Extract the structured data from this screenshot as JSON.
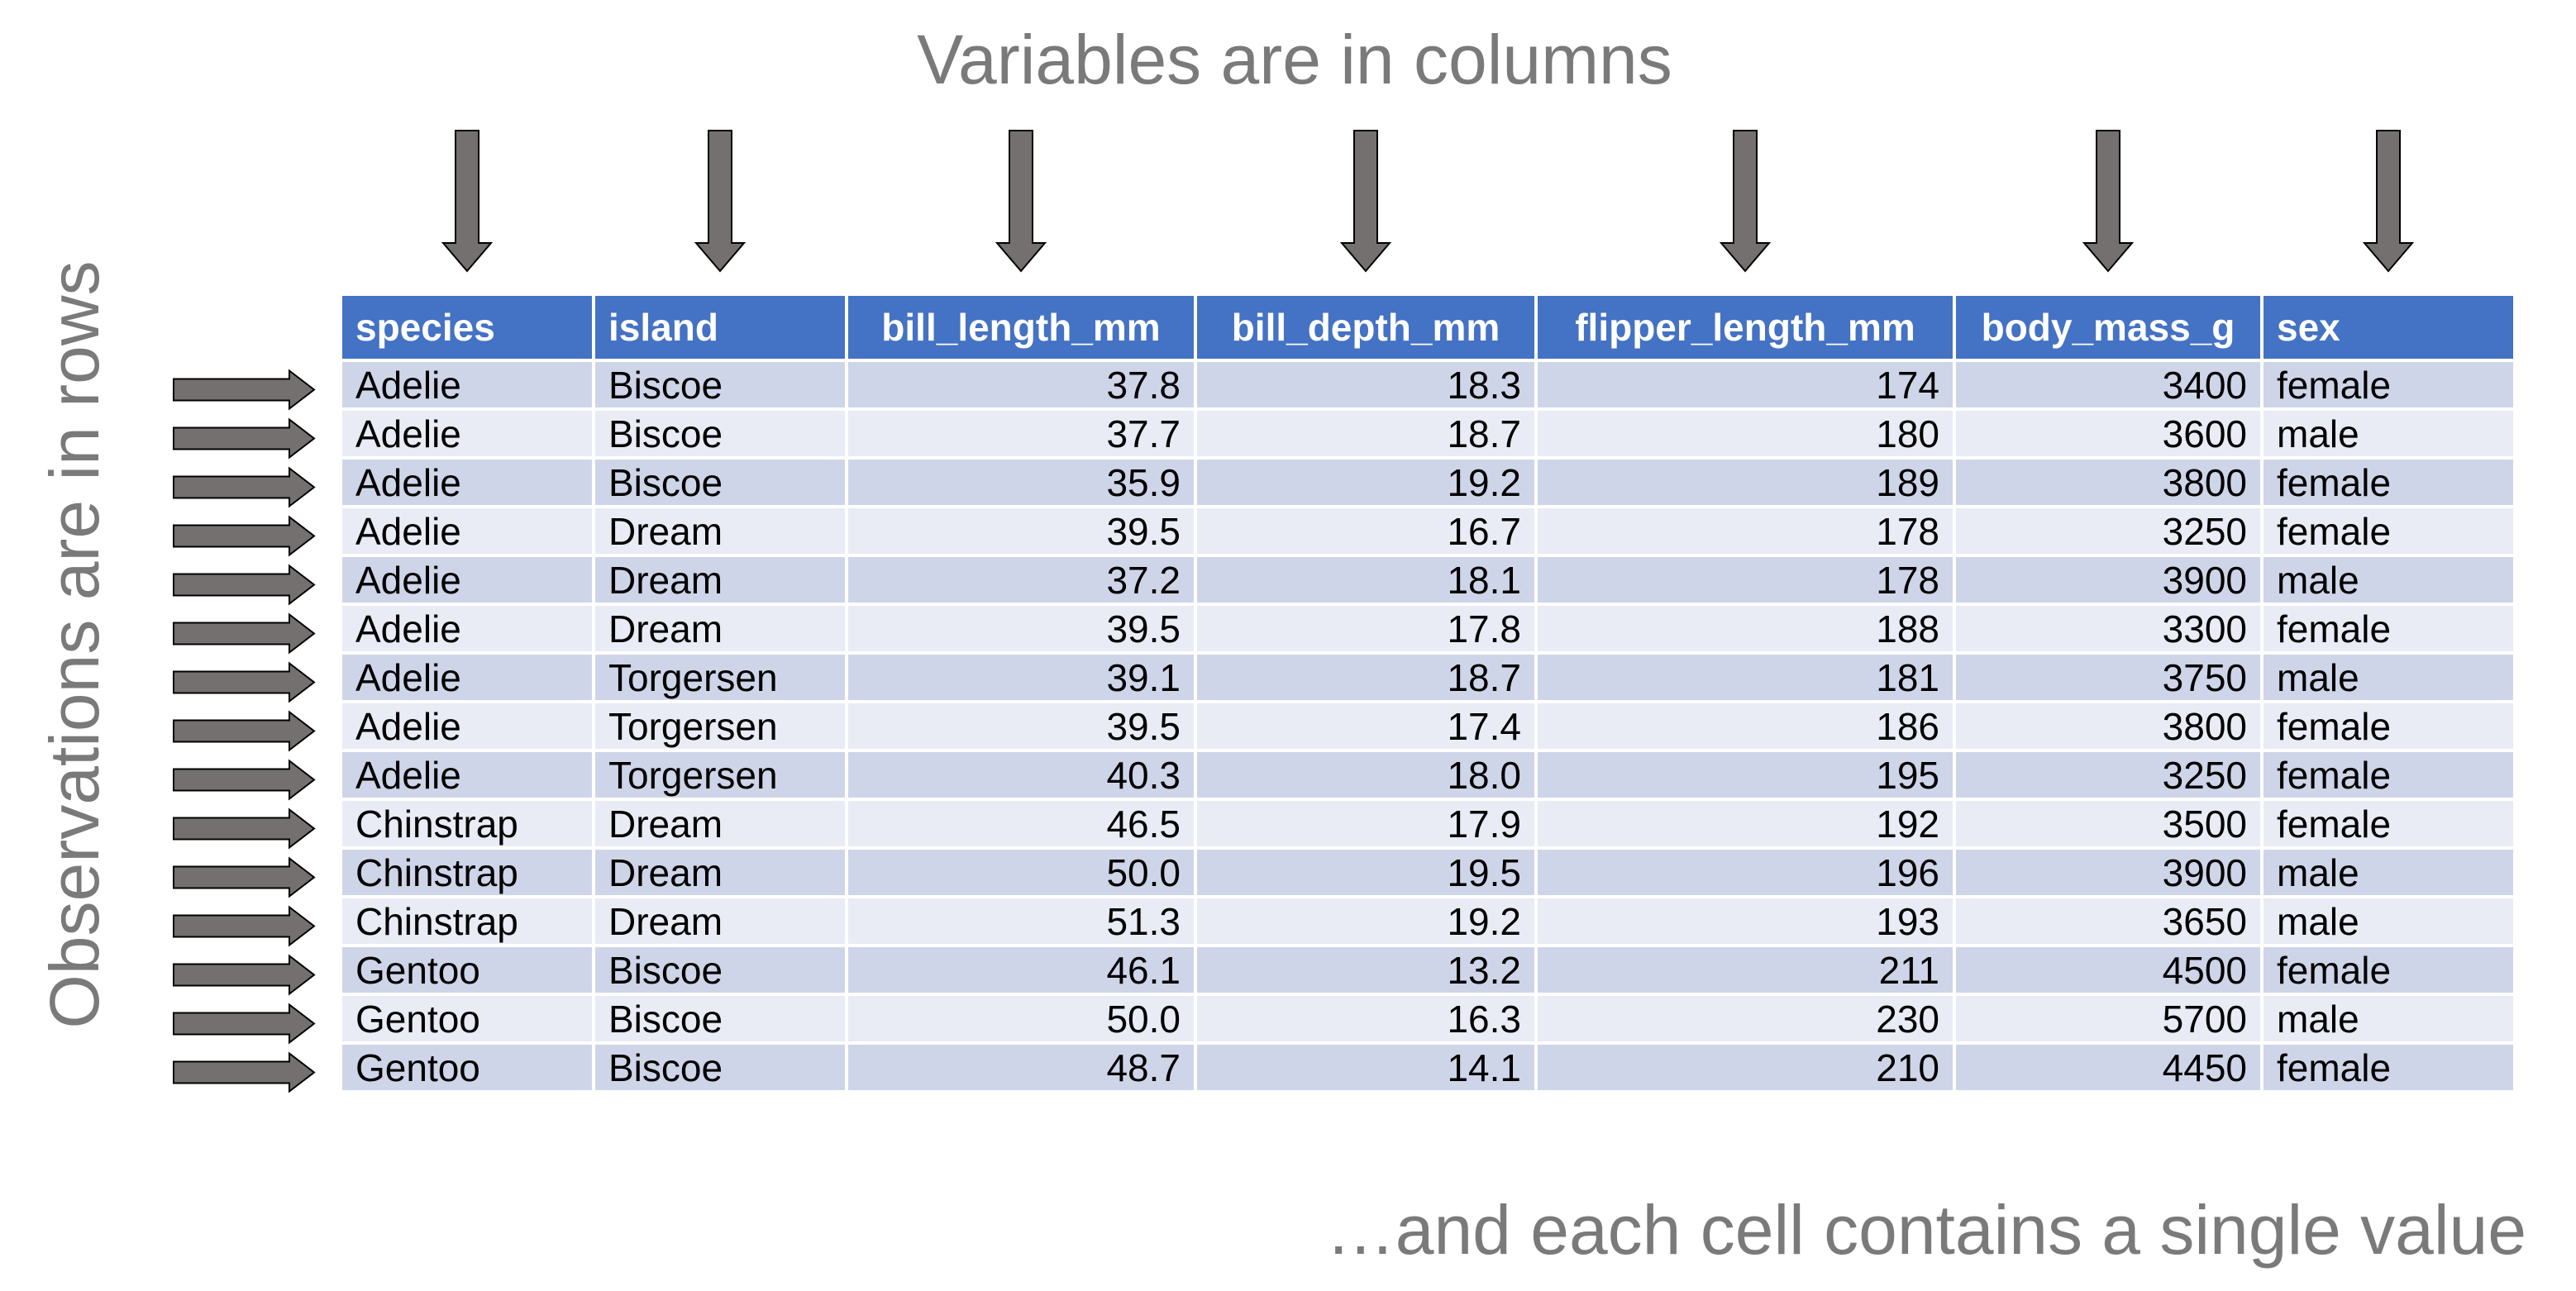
{
  "labels": {
    "top": "Variables are in columns",
    "left": "Observations are in rows",
    "bottom": "…and each cell contains a single value"
  },
  "colors": {
    "header": "#4472c4",
    "row_odd": "#cfd5e8",
    "row_even": "#e9ebf5",
    "arrow_fill": "#747070",
    "caption_text": "#7a7a7a"
  },
  "table": {
    "columns": [
      {
        "name": "species",
        "align": "left"
      },
      {
        "name": "island",
        "align": "left"
      },
      {
        "name": "bill_length_mm",
        "align": "right"
      },
      {
        "name": "bill_depth_mm",
        "align": "right"
      },
      {
        "name": "flipper_length_mm",
        "align": "right"
      },
      {
        "name": "body_mass_g",
        "align": "right"
      },
      {
        "name": "sex",
        "align": "left"
      }
    ],
    "rows": [
      [
        "Adelie",
        "Biscoe",
        "37.8",
        "18.3",
        "174",
        "3400",
        "female"
      ],
      [
        "Adelie",
        "Biscoe",
        "37.7",
        "18.7",
        "180",
        "3600",
        "male"
      ],
      [
        "Adelie",
        "Biscoe",
        "35.9",
        "19.2",
        "189",
        "3800",
        "female"
      ],
      [
        "Adelie",
        "Dream",
        "39.5",
        "16.7",
        "178",
        "3250",
        "female"
      ],
      [
        "Adelie",
        "Dream",
        "37.2",
        "18.1",
        "178",
        "3900",
        "male"
      ],
      [
        "Adelie",
        "Dream",
        "39.5",
        "17.8",
        "188",
        "3300",
        "female"
      ],
      [
        "Adelie",
        "Torgersen",
        "39.1",
        "18.7",
        "181",
        "3750",
        "male"
      ],
      [
        "Adelie",
        "Torgersen",
        "39.5",
        "17.4",
        "186",
        "3800",
        "female"
      ],
      [
        "Adelie",
        "Torgersen",
        "40.3",
        "18.0",
        "195",
        "3250",
        "female"
      ],
      [
        "Chinstrap",
        "Dream",
        "46.5",
        "17.9",
        "192",
        "3500",
        "female"
      ],
      [
        "Chinstrap",
        "Dream",
        "50.0",
        "19.5",
        "196",
        "3900",
        "male"
      ],
      [
        "Chinstrap",
        "Dream",
        "51.3",
        "19.2",
        "193",
        "3650",
        "male"
      ],
      [
        "Gentoo",
        "Biscoe",
        "46.1",
        "13.2",
        "211",
        "4500",
        "female"
      ],
      [
        "Gentoo",
        "Biscoe",
        "50.0",
        "16.3",
        "230",
        "5700",
        "male"
      ],
      [
        "Gentoo",
        "Biscoe",
        "48.7",
        "14.1",
        "210",
        "4450",
        "female"
      ]
    ]
  }
}
